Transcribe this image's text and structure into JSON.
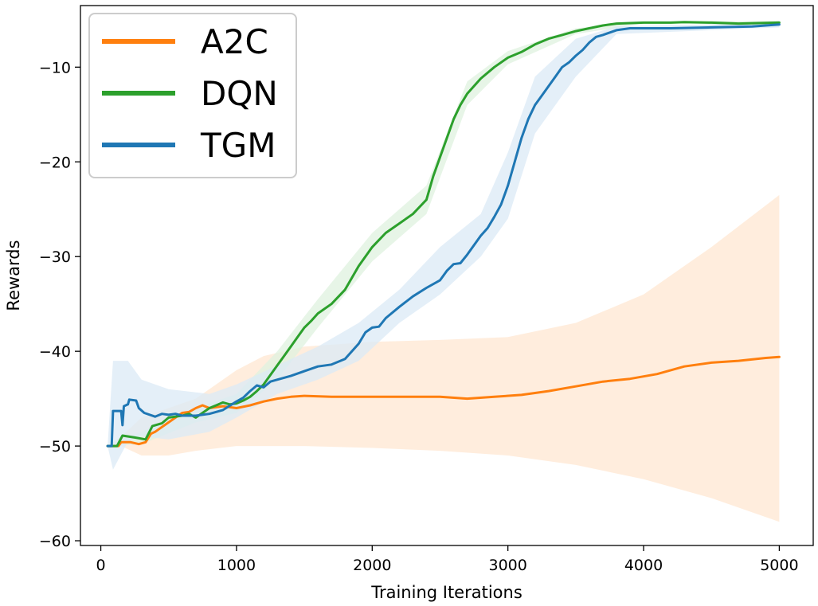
{
  "chart_data": {
    "type": "line",
    "title": "",
    "xlabel": "Training Iterations",
    "ylabel": "Rewards",
    "xlim": [
      -150,
      5250
    ],
    "ylim": [
      -60.5,
      -3.5
    ],
    "xticks": [
      0,
      1000,
      2000,
      3000,
      4000,
      5000
    ],
    "xtick_labels": [
      "0",
      "1000",
      "2000",
      "3000",
      "4000",
      "5000"
    ],
    "yticks": [
      -60,
      -50,
      -40,
      -30,
      -20,
      -10
    ],
    "ytick_labels": [
      "−60",
      "−50",
      "−40",
      "−30",
      "−20",
      "−10"
    ],
    "legend": {
      "placement": "top-left",
      "entries": [
        "A2C",
        "DQN",
        "TGM"
      ]
    },
    "series": [
      {
        "name": "A2C",
        "color": "#ff7f0e",
        "band_color": "#ffe7d1",
        "points": [
          [
            50,
            -50
          ],
          [
            130,
            -50
          ],
          [
            150,
            -49.6
          ],
          [
            220,
            -49.6
          ],
          [
            280,
            -49.8
          ],
          [
            330,
            -49.6
          ],
          [
            370,
            -48.7
          ],
          [
            400,
            -48.5
          ],
          [
            450,
            -48
          ],
          [
            500,
            -47.5
          ],
          [
            550,
            -47
          ],
          [
            600,
            -46.5
          ],
          [
            650,
            -46.4
          ],
          [
            700,
            -46
          ],
          [
            750,
            -45.7
          ],
          [
            800,
            -46
          ],
          [
            900,
            -45.8
          ],
          [
            1000,
            -46
          ],
          [
            1100,
            -45.7
          ],
          [
            1200,
            -45.3
          ],
          [
            1300,
            -45
          ],
          [
            1400,
            -44.8
          ],
          [
            1500,
            -44.7
          ],
          [
            1700,
            -44.8
          ],
          [
            1900,
            -44.8
          ],
          [
            2100,
            -44.8
          ],
          [
            2300,
            -44.8
          ],
          [
            2500,
            -44.8
          ],
          [
            2700,
            -45
          ],
          [
            2900,
            -44.8
          ],
          [
            3100,
            -44.6
          ],
          [
            3300,
            -44.2
          ],
          [
            3500,
            -43.7
          ],
          [
            3700,
            -43.2
          ],
          [
            3900,
            -42.9
          ],
          [
            4100,
            -42.4
          ],
          [
            4300,
            -41.6
          ],
          [
            4500,
            -41.2
          ],
          [
            4700,
            -41
          ],
          [
            4900,
            -40.7
          ],
          [
            5000,
            -40.6
          ]
        ],
        "band_upper": [
          [
            50,
            -50
          ],
          [
            150,
            -49
          ],
          [
            300,
            -47
          ],
          [
            500,
            -46
          ],
          [
            700,
            -45
          ],
          [
            1000,
            -42
          ],
          [
            1200,
            -40.5
          ],
          [
            1500,
            -39.5
          ],
          [
            2000,
            -39
          ],
          [
            2500,
            -38.8
          ],
          [
            3000,
            -38.5
          ],
          [
            3500,
            -37
          ],
          [
            4000,
            -34
          ],
          [
            4500,
            -29
          ],
          [
            5000,
            -23.5
          ]
        ],
        "band_lower": [
          [
            50,
            -50
          ],
          [
            150,
            -50
          ],
          [
            300,
            -51
          ],
          [
            500,
            -51
          ],
          [
            700,
            -50.5
          ],
          [
            1000,
            -50
          ],
          [
            1500,
            -50
          ],
          [
            2000,
            -50.2
          ],
          [
            2500,
            -50.5
          ],
          [
            3000,
            -51
          ],
          [
            3500,
            -52
          ],
          [
            4000,
            -53.5
          ],
          [
            4500,
            -55.5
          ],
          [
            5000,
            -58
          ]
        ]
      },
      {
        "name": "DQN",
        "color": "#2ca02c",
        "band_color": "#dff1df",
        "points": [
          [
            50,
            -50
          ],
          [
            120,
            -50
          ],
          [
            160,
            -48.9
          ],
          [
            250,
            -49.1
          ],
          [
            330,
            -49.3
          ],
          [
            380,
            -47.9
          ],
          [
            450,
            -47.6
          ],
          [
            500,
            -47
          ],
          [
            550,
            -46.9
          ],
          [
            600,
            -46.8
          ],
          [
            650,
            -46.6
          ],
          [
            700,
            -47
          ],
          [
            750,
            -46.5
          ],
          [
            800,
            -46
          ],
          [
            850,
            -45.7
          ],
          [
            900,
            -45.4
          ],
          [
            950,
            -45.6
          ],
          [
            1000,
            -45.5
          ],
          [
            1050,
            -45.2
          ],
          [
            1100,
            -44.8
          ],
          [
            1150,
            -44.2
          ],
          [
            1200,
            -43.5
          ],
          [
            1250,
            -42.5
          ],
          [
            1300,
            -41.5
          ],
          [
            1350,
            -40.5
          ],
          [
            1400,
            -39.5
          ],
          [
            1450,
            -38.5
          ],
          [
            1500,
            -37.5
          ],
          [
            1550,
            -36.8
          ],
          [
            1600,
            -36
          ],
          [
            1700,
            -35
          ],
          [
            1800,
            -33.5
          ],
          [
            1900,
            -31
          ],
          [
            2000,
            -29
          ],
          [
            2100,
            -27.5
          ],
          [
            2200,
            -26.5
          ],
          [
            2300,
            -25.5
          ],
          [
            2400,
            -24
          ],
          [
            2450,
            -21.5
          ],
          [
            2500,
            -19.5
          ],
          [
            2550,
            -17.5
          ],
          [
            2600,
            -15.5
          ],
          [
            2650,
            -14
          ],
          [
            2700,
            -12.8
          ],
          [
            2800,
            -11.2
          ],
          [
            2900,
            -10
          ],
          [
            3000,
            -9
          ],
          [
            3100,
            -8.4
          ],
          [
            3200,
            -7.6
          ],
          [
            3300,
            -7
          ],
          [
            3400,
            -6.6
          ],
          [
            3500,
            -6.2
          ],
          [
            3600,
            -5.9
          ],
          [
            3700,
            -5.6
          ],
          [
            3800,
            -5.4
          ],
          [
            3900,
            -5.35
          ],
          [
            4000,
            -5.3
          ],
          [
            4200,
            -5.3
          ],
          [
            4300,
            -5.25
          ],
          [
            4500,
            -5.3
          ],
          [
            4700,
            -5.4
          ],
          [
            5000,
            -5.3
          ]
        ],
        "band_upper": [
          [
            50,
            -50
          ],
          [
            300,
            -48.5
          ],
          [
            700,
            -46
          ],
          [
            1000,
            -44.5
          ],
          [
            1300,
            -40
          ],
          [
            1600,
            -34.5
          ],
          [
            2000,
            -27.5
          ],
          [
            2400,
            -22.5
          ],
          [
            2700,
            -11.5
          ],
          [
            3000,
            -8.3
          ],
          [
            3500,
            -5.9
          ],
          [
            4000,
            -5.2
          ],
          [
            5000,
            -5.1
          ]
        ],
        "band_lower": [
          [
            50,
            -50
          ],
          [
            300,
            -49.8
          ],
          [
            700,
            -47.5
          ],
          [
            1000,
            -46.5
          ],
          [
            1300,
            -43
          ],
          [
            1600,
            -37.5
          ],
          [
            2000,
            -30.5
          ],
          [
            2400,
            -25.5
          ],
          [
            2700,
            -14
          ],
          [
            3000,
            -9.7
          ],
          [
            3500,
            -6.5
          ],
          [
            4000,
            -5.4
          ],
          [
            5000,
            -5.5
          ]
        ]
      },
      {
        "name": "TGM",
        "color": "#1f77b4",
        "band_color": "#dbe9f6",
        "points": [
          [
            50,
            -50
          ],
          [
            80,
            -50
          ],
          [
            90,
            -46.3
          ],
          [
            150,
            -46.3
          ],
          [
            160,
            -47.8
          ],
          [
            170,
            -45.8
          ],
          [
            200,
            -45.6
          ],
          [
            210,
            -45.1
          ],
          [
            260,
            -45.2
          ],
          [
            280,
            -46
          ],
          [
            320,
            -46.5
          ],
          [
            400,
            -46.9
          ],
          [
            450,
            -46.6
          ],
          [
            500,
            -46.7
          ],
          [
            550,
            -46.6
          ],
          [
            600,
            -46.8
          ],
          [
            700,
            -46.8
          ],
          [
            800,
            -46.6
          ],
          [
            900,
            -46.2
          ],
          [
            1000,
            -45.3
          ],
          [
            1050,
            -44.9
          ],
          [
            1100,
            -44.2
          ],
          [
            1150,
            -43.6
          ],
          [
            1200,
            -43.8
          ],
          [
            1250,
            -43.2
          ],
          [
            1300,
            -43
          ],
          [
            1400,
            -42.6
          ],
          [
            1500,
            -42.1
          ],
          [
            1600,
            -41.6
          ],
          [
            1700,
            -41.4
          ],
          [
            1800,
            -40.8
          ],
          [
            1900,
            -39.2
          ],
          [
            1950,
            -38
          ],
          [
            2000,
            -37.5
          ],
          [
            2050,
            -37.4
          ],
          [
            2100,
            -36.5
          ],
          [
            2200,
            -35.3
          ],
          [
            2300,
            -34.2
          ],
          [
            2400,
            -33.3
          ],
          [
            2500,
            -32.5
          ],
          [
            2550,
            -31.5
          ],
          [
            2600,
            -30.8
          ],
          [
            2650,
            -30.7
          ],
          [
            2700,
            -29.8
          ],
          [
            2750,
            -28.8
          ],
          [
            2800,
            -27.8
          ],
          [
            2850,
            -27
          ],
          [
            2900,
            -25.8
          ],
          [
            2950,
            -24.5
          ],
          [
            3000,
            -22.5
          ],
          [
            3050,
            -20
          ],
          [
            3100,
            -17.5
          ],
          [
            3150,
            -15.5
          ],
          [
            3200,
            -14
          ],
          [
            3250,
            -13
          ],
          [
            3300,
            -12
          ],
          [
            3350,
            -11
          ],
          [
            3400,
            -10
          ],
          [
            3450,
            -9.5
          ],
          [
            3500,
            -8.8
          ],
          [
            3550,
            -8.2
          ],
          [
            3600,
            -7.4
          ],
          [
            3650,
            -6.8
          ],
          [
            3700,
            -6.6
          ],
          [
            3800,
            -6.1
          ],
          [
            3900,
            -5.9
          ],
          [
            4000,
            -5.9
          ],
          [
            4200,
            -5.9
          ],
          [
            4500,
            -5.8
          ],
          [
            4800,
            -5.7
          ],
          [
            5000,
            -5.5
          ]
        ],
        "band_upper": [
          [
            50,
            -50
          ],
          [
            90,
            -41
          ],
          [
            200,
            -41
          ],
          [
            300,
            -43
          ],
          [
            500,
            -44
          ],
          [
            800,
            -44.5
          ],
          [
            1000,
            -43.5
          ],
          [
            1300,
            -41.5
          ],
          [
            1600,
            -39.5
          ],
          [
            1900,
            -37
          ],
          [
            2200,
            -33.5
          ],
          [
            2500,
            -29
          ],
          [
            2800,
            -25.5
          ],
          [
            3000,
            -19
          ],
          [
            3200,
            -11
          ],
          [
            3500,
            -7
          ],
          [
            3800,
            -5.7
          ],
          [
            5000,
            -5.3
          ]
        ],
        "band_lower": [
          [
            50,
            -50
          ],
          [
            90,
            -52.5
          ],
          [
            200,
            -49.5
          ],
          [
            300,
            -49
          ],
          [
            500,
            -49.3
          ],
          [
            800,
            -48.5
          ],
          [
            1000,
            -47
          ],
          [
            1300,
            -44.5
          ],
          [
            1600,
            -43
          ],
          [
            1900,
            -41
          ],
          [
            2200,
            -37
          ],
          [
            2500,
            -34
          ],
          [
            2800,
            -30
          ],
          [
            3000,
            -26
          ],
          [
            3200,
            -17
          ],
          [
            3500,
            -11
          ],
          [
            3800,
            -6.5
          ],
          [
            5000,
            -5.8
          ]
        ]
      }
    ]
  }
}
